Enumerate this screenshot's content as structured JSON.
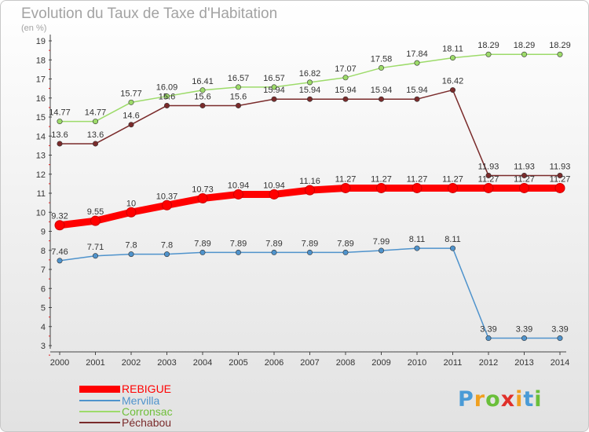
{
  "header": {
    "title": "Evolution du Taux de Taxe d'Habitation",
    "unit": "(en %)"
  },
  "chart_data": {
    "type": "line",
    "title": "Evolution du Taux de Taxe d'Habitation",
    "subtitle": "(en %)",
    "xlabel": "",
    "ylabel": "",
    "x": [
      "2000",
      "2001",
      "2002",
      "2003",
      "2004",
      "2005",
      "2006",
      "2007",
      "2008",
      "2009",
      "2010",
      "2011",
      "2012",
      "2013",
      "2014"
    ],
    "ylim": [
      3,
      19
    ],
    "yticks": [
      "3",
      "4",
      "5",
      "6",
      "7",
      "8",
      "9",
      "10",
      "11",
      "12",
      "13",
      "14",
      "15",
      "16",
      "17",
      "18",
      "19"
    ],
    "grid": false,
    "legend_position": "bottom-left",
    "series": [
      {
        "name": "REBIGUE",
        "color": "#ff0000",
        "values": [
          9.32,
          9.55,
          10,
          10.37,
          10.73,
          10.94,
          10.94,
          11.16,
          11.27,
          11.27,
          11.27,
          11.27,
          11.27,
          11.27,
          11.27
        ],
        "labels": [
          "9.32",
          "9.55",
          "10",
          "10.37",
          "10.73",
          "10.94",
          "10.94",
          "11.16",
          "11.27",
          "11.27",
          "11.27",
          "11.27",
          "11.27",
          "11.27",
          "11.27"
        ]
      },
      {
        "name": "Mervilla",
        "color": "#4f93cc",
        "values": [
          7.46,
          7.71,
          7.8,
          7.8,
          7.89,
          7.89,
          7.89,
          7.89,
          7.89,
          7.99,
          8.11,
          8.11,
          3.39,
          3.39,
          3.39
        ],
        "labels": [
          "7.46",
          "7.71",
          "7.8",
          "7.8",
          "7.89",
          "7.89",
          "7.89",
          "7.89",
          "7.89",
          "7.99",
          "8.11",
          "8.11",
          "3.39",
          "3.39",
          "3.39"
        ]
      },
      {
        "name": "Corronsac",
        "color": "#9ddb6a",
        "values": [
          14.77,
          14.77,
          15.77,
          16.09,
          16.41,
          16.57,
          16.57,
          16.82,
          17.07,
          17.58,
          17.84,
          18.11,
          18.29,
          18.29,
          18.29
        ],
        "labels": [
          "14.77",
          "14.77",
          "15.77",
          "16.09",
          "16.41",
          "16.57",
          "16.57",
          "16.82",
          "17.07",
          "17.58",
          "17.84",
          "18.11",
          "18.29",
          "18.29",
          "18.29"
        ]
      },
      {
        "name": "Péchabou",
        "color": "#7a2b2b",
        "values": [
          13.6,
          13.6,
          14.6,
          15.6,
          15.6,
          15.6,
          15.94,
          15.94,
          15.94,
          15.94,
          15.94,
          16.42,
          11.93,
          11.93,
          11.93
        ],
        "labels": [
          "13.6",
          "13.6",
          "14.6",
          "15.6",
          "15.6",
          "15.6",
          "15.94",
          "15.94",
          "15.94",
          "15.94",
          "15.94",
          "16.42",
          "11.93",
          "11.93",
          "11.93"
        ]
      }
    ]
  },
  "legend": [
    {
      "label": "REBIGUE",
      "color": "#ff0000"
    },
    {
      "label": "Mervilla",
      "color": "#4f93cc"
    },
    {
      "label": "Corronsac",
      "color": "#9ddb6a"
    },
    {
      "label": "Péchabou",
      "color": "#7a2b2b"
    }
  ],
  "logo": {
    "letters": [
      "P",
      "r",
      "o",
      "x",
      "i",
      "t",
      "i"
    ],
    "colors": [
      "#4a9bd6",
      "#f0a020",
      "#6abf3a",
      "#e0302a",
      "#f0a020",
      "#4a9bd6",
      "#6abf3a"
    ]
  }
}
